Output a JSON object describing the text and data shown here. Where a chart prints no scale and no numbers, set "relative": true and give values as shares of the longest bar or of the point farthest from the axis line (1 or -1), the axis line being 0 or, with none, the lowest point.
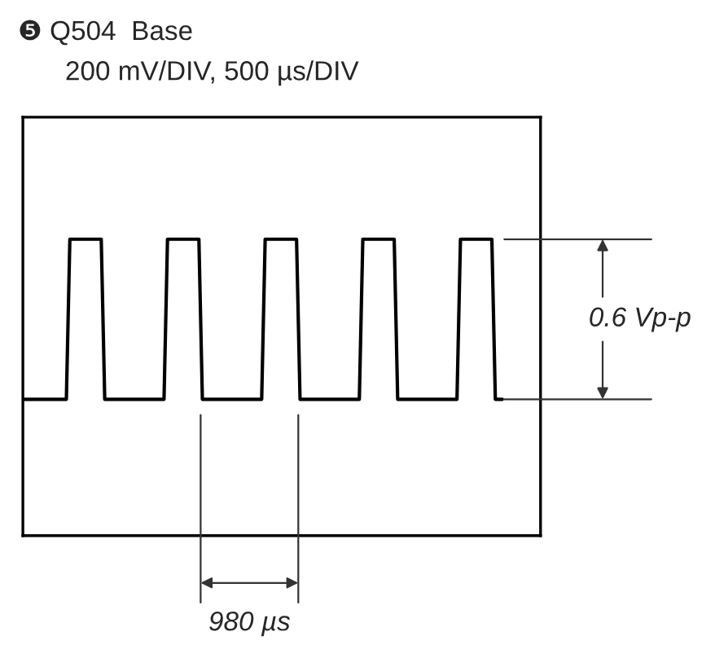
{
  "chart_data": {
    "type": "line",
    "title": "❺ Q504  Base",
    "subtitle": "200 mV/DIV, 500 µs/DIV",
    "relative": true,
    "legend": false,
    "marker": "none",
    "line_style": "solid",
    "categories": [
      null,
      null,
      null,
      null,
      null,
      null,
      null,
      null,
      null,
      null,
      null,
      null,
      null,
      null,
      null,
      null,
      null,
      null,
      null,
      null,
      null,
      null,
      null,
      null,
      null,
      null,
      null,
      null,
      null,
      null,
      null,
      null,
      null,
      null,
      null,
      null,
      null,
      null,
      null,
      null,
      null,
      null,
      null,
      null,
      null,
      null,
      null,
      null,
      null,
      null,
      null,
      null,
      null,
      null,
      null,
      null,
      null,
      null,
      null,
      null,
      null,
      null,
      null,
      null,
      null,
      null,
      null,
      null,
      null,
      null,
      null,
      null,
      null,
      null,
      null,
      null,
      null,
      null,
      null,
      null,
      null,
      null,
      null,
      null,
      null,
      null,
      null,
      null,
      null,
      null,
      null,
      null,
      null,
      null,
      null,
      null,
      null,
      null,
      null,
      null,
      null,
      null,
      null,
      null,
      null,
      null,
      null,
      null,
      null,
      null,
      null,
      null,
      null,
      null,
      null,
      null,
      null,
      null,
      null,
      null,
      null,
      null,
      null,
      null,
      null,
      null,
      null,
      null,
      null,
      null,
      null,
      null,
      null,
      null,
      null,
      null,
      null,
      null
    ],
    "series": [
      {
        "color": "#000000",
        "values": [
          0.46,
          0.46,
          0.46,
          0.46,
          0.46,
          0.46,
          0.46,
          0.46,
          0.46,
          0.46,
          0.46,
          0.46,
          0.46,
          1,
          1,
          1,
          1,
          1,
          1,
          1,
          1,
          1,
          1,
          0.46,
          0.46,
          0.46,
          0.46,
          0.46,
          0.46,
          0.46,
          0.46,
          0.46,
          0.46,
          0.46,
          0.46,
          0.46,
          0.46,
          0.46,
          0.46,
          0.46,
          0.46,
          1,
          1,
          1,
          1,
          1,
          1,
          1,
          1,
          1,
          1,
          0.46,
          0.46,
          0.46,
          0.46,
          0.46,
          0.46,
          0.46,
          0.46,
          0.46,
          0.46,
          0.46,
          0.46,
          0.46,
          0.46,
          0.46,
          0.46,
          0.46,
          0.46,
          1,
          1,
          1,
          1,
          1,
          1,
          1,
          1,
          1,
          1,
          0.46,
          0.46,
          0.46,
          0.46,
          0.46,
          0.46,
          0.46,
          0.46,
          0.46,
          0.46,
          0.46,
          0.46,
          0.46,
          0.46,
          0.46,
          0.46,
          0.46,
          0.46,
          1,
          1,
          1,
          1,
          1,
          1,
          1,
          1,
          1,
          1,
          0.46,
          0.46,
          0.46,
          0.46,
          0.46,
          0.46,
          0.46,
          0.46,
          0.46,
          0.46,
          0.46,
          0.46,
          0.46,
          0.46,
          0.46,
          0.46,
          0.46,
          0.46,
          1,
          1,
          1,
          1,
          1,
          1,
          1,
          1,
          1,
          1,
          0.46,
          0.46,
          0.46
        ]
      }
    ],
    "annotations": [
      "0.6 Vp-p",
      "980 µs"
    ]
  }
}
